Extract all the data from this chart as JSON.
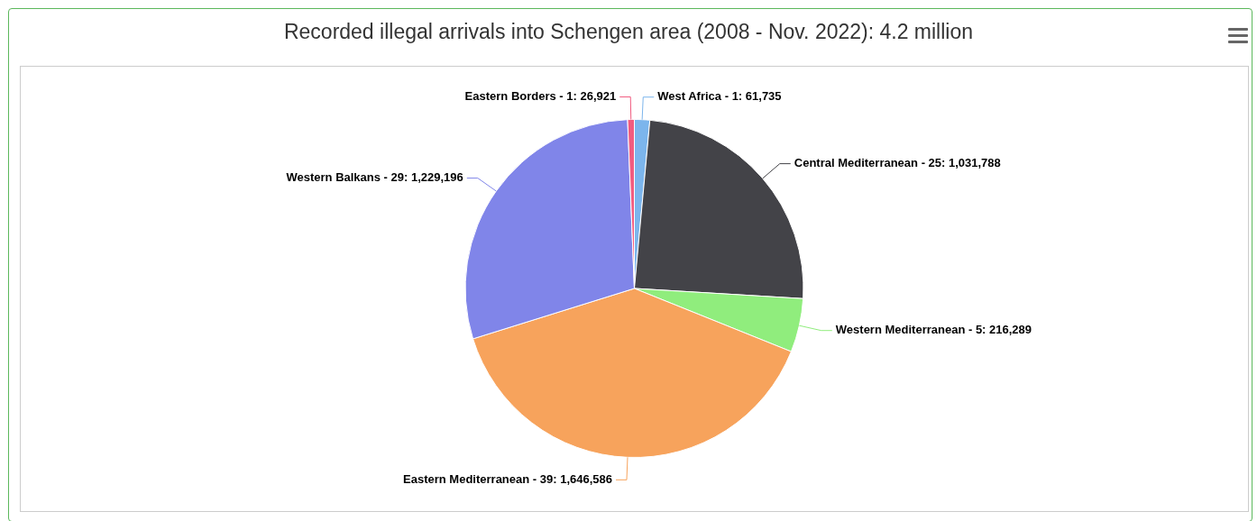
{
  "chart_data": {
    "type": "pie",
    "title": "Recorded illegal arrivals into Schengen area (2008 - Nov. 2022): 4.2 million",
    "categories": [
      "West Africa",
      "Central Mediterranean",
      "Western Mediterranean",
      "Eastern Mediterranean",
      "Western Balkans",
      "Eastern Borders"
    ],
    "values": [
      61735,
      1031788,
      216289,
      1646586,
      1229196,
      26921
    ],
    "value_labels": [
      "1: 61,735",
      "25: 1,031,788",
      "5: 216,289",
      "39: 1,646,586",
      "29: 1,229,196",
      "1: 26,921"
    ],
    "colors": [
      "#7cb5ec",
      "#434348",
      "#90ed7d",
      "#f7a35c",
      "#8085e9",
      "#f15c80"
    ],
    "legend": false
  }
}
